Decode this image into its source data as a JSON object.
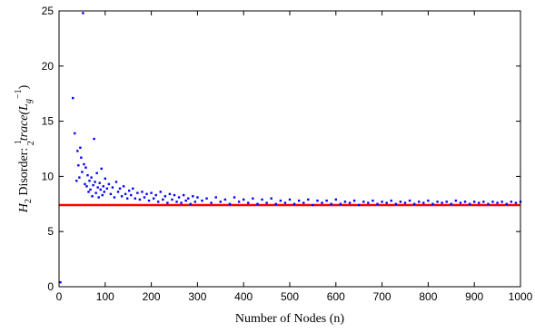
{
  "chart_data": {
    "type": "scatter",
    "xlabel": "Number of Nodes (n)",
    "ylabel": {
      "prefix_main": "H",
      "prefix_sub": "2",
      "text": " Disorder: ",
      "frac_num": "1",
      "frac_den": "2",
      "func": "trace",
      "arg_main": "(L",
      "arg_sub": "g",
      "arg_sup": "−1",
      "arg_close": ")"
    },
    "xlim": [
      0,
      1000
    ],
    "ylim": [
      0,
      25
    ],
    "x_ticks": [
      0,
      100,
      200,
      300,
      400,
      500,
      600,
      700,
      800,
      900,
      1000
    ],
    "y_ticks": [
      0,
      5,
      10,
      15,
      20,
      25
    ],
    "grid": false,
    "series": [
      {
        "color": "#0000ff",
        "marker": "dot",
        "points": [
          [
            3,
            0.4
          ],
          [
            30,
            17.1
          ],
          [
            34,
            13.9
          ],
          [
            38,
            9.6
          ],
          [
            40,
            12.3
          ],
          [
            42,
            11.0
          ],
          [
            44,
            9.9
          ],
          [
            46,
            12.6
          ],
          [
            48,
            11.7
          ],
          [
            50,
            10.4
          ],
          [
            52,
            24.8
          ],
          [
            54,
            11.1
          ],
          [
            56,
            9.3
          ],
          [
            58,
            10.8
          ],
          [
            60,
            9.1
          ],
          [
            62,
            10.1
          ],
          [
            64,
            8.6
          ],
          [
            66,
            9.6
          ],
          [
            68,
            8.8
          ],
          [
            70,
            9.9
          ],
          [
            72,
            8.2
          ],
          [
            74,
            9.2
          ],
          [
            76,
            13.4
          ],
          [
            78,
            9.5
          ],
          [
            80,
            8.5
          ],
          [
            82,
            10.3
          ],
          [
            84,
            9.0
          ],
          [
            86,
            8.1
          ],
          [
            88,
            9.4
          ],
          [
            90,
            8.8
          ],
          [
            92,
            10.7
          ],
          [
            94,
            8.3
          ],
          [
            96,
            9.1
          ],
          [
            98,
            8.6
          ],
          [
            100,
            9.8
          ],
          [
            104,
            8.9
          ],
          [
            108,
            9.3
          ],
          [
            112,
            8.4
          ],
          [
            116,
            9.0
          ],
          [
            120,
            8.1
          ],
          [
            124,
            9.5
          ],
          [
            128,
            8.6
          ],
          [
            132,
            8.9
          ],
          [
            136,
            8.2
          ],
          [
            140,
            9.1
          ],
          [
            144,
            8.4
          ],
          [
            148,
            8.0
          ],
          [
            152,
            8.7
          ],
          [
            156,
            8.3
          ],
          [
            160,
            8.9
          ],
          [
            165,
            8.0
          ],
          [
            170,
            8.5
          ],
          [
            175,
            7.9
          ],
          [
            180,
            8.6
          ],
          [
            185,
            8.1
          ],
          [
            190,
            8.4
          ],
          [
            195,
            7.8
          ],
          [
            200,
            8.5
          ],
          [
            205,
            8.0
          ],
          [
            210,
            8.3
          ],
          [
            215,
            7.7
          ],
          [
            220,
            8.6
          ],
          [
            225,
            7.9
          ],
          [
            230,
            8.2
          ],
          [
            235,
            7.6
          ],
          [
            240,
            8.4
          ],
          [
            245,
            7.9
          ],
          [
            250,
            8.3
          ],
          [
            255,
            7.7
          ],
          [
            260,
            8.1
          ],
          [
            265,
            7.6
          ],
          [
            270,
            8.3
          ],
          [
            275,
            7.8
          ],
          [
            280,
            8.0
          ],
          [
            285,
            7.5
          ],
          [
            290,
            8.2
          ],
          [
            295,
            7.7
          ],
          [
            300,
            8.1
          ],
          [
            310,
            7.8
          ],
          [
            320,
            8.0
          ],
          [
            330,
            7.6
          ],
          [
            340,
            8.1
          ],
          [
            350,
            7.7
          ],
          [
            360,
            7.9
          ],
          [
            370,
            7.5
          ],
          [
            380,
            8.1
          ],
          [
            390,
            7.7
          ],
          [
            400,
            7.9
          ],
          [
            410,
            7.6
          ],
          [
            420,
            8.0
          ],
          [
            430,
            7.5
          ],
          [
            440,
            7.9
          ],
          [
            450,
            7.6
          ],
          [
            460,
            8.0
          ],
          [
            470,
            7.5
          ],
          [
            480,
            7.8
          ],
          [
            490,
            7.6
          ],
          [
            500,
            7.9
          ],
          [
            510,
            7.5
          ],
          [
            520,
            7.8
          ],
          [
            530,
            7.6
          ],
          [
            540,
            7.9
          ],
          [
            550,
            7.4
          ],
          [
            560,
            7.8
          ],
          [
            570,
            7.6
          ],
          [
            580,
            7.8
          ],
          [
            590,
            7.5
          ],
          [
            600,
            7.9
          ],
          [
            610,
            7.5
          ],
          [
            620,
            7.7
          ],
          [
            630,
            7.6
          ],
          [
            640,
            7.8
          ],
          [
            650,
            7.4
          ],
          [
            660,
            7.7
          ],
          [
            670,
            7.6
          ],
          [
            680,
            7.8
          ],
          [
            690,
            7.5
          ],
          [
            700,
            7.7
          ],
          [
            710,
            7.6
          ],
          [
            720,
            7.8
          ],
          [
            730,
            7.5
          ],
          [
            740,
            7.7
          ],
          [
            750,
            7.6
          ],
          [
            760,
            7.8
          ],
          [
            770,
            7.5
          ],
          [
            780,
            7.7
          ],
          [
            790,
            7.6
          ],
          [
            800,
            7.8
          ],
          [
            810,
            7.5
          ],
          [
            820,
            7.7
          ],
          [
            830,
            7.6
          ],
          [
            840,
            7.7
          ],
          [
            850,
            7.5
          ],
          [
            860,
            7.8
          ],
          [
            870,
            7.6
          ],
          [
            880,
            7.7
          ],
          [
            890,
            7.5
          ],
          [
            900,
            7.7
          ],
          [
            910,
            7.6
          ],
          [
            920,
            7.7
          ],
          [
            930,
            7.5
          ],
          [
            940,
            7.7
          ],
          [
            950,
            7.6
          ],
          [
            960,
            7.7
          ],
          [
            970,
            7.5
          ],
          [
            980,
            7.7
          ],
          [
            990,
            7.6
          ],
          [
            1000,
            7.7
          ]
        ]
      }
    ],
    "reference_line": {
      "y": 7.4,
      "color": "#ff0000"
    }
  }
}
